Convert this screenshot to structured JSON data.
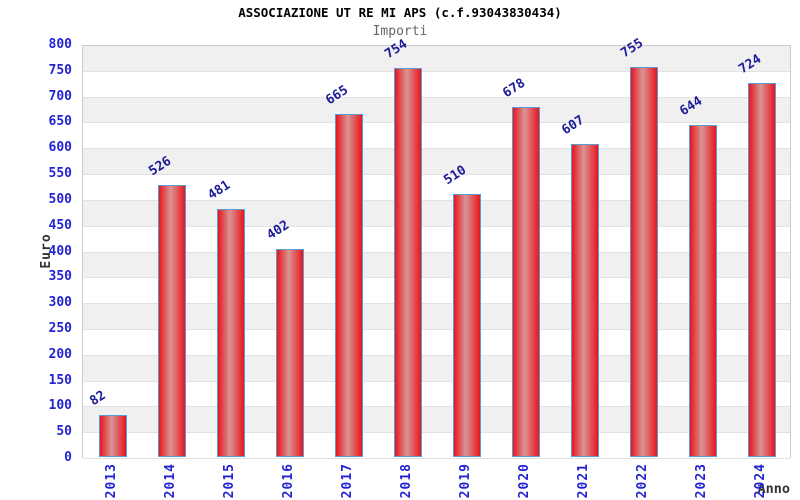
{
  "chart_data": {
    "type": "bar",
    "title": "ASSOCIAZIONE UT RE MI APS (c.f.93043830434)",
    "subtitle": "Importi",
    "xlabel": "Anno",
    "ylabel": "Euro",
    "categories": [
      "2013",
      "2014",
      "2015",
      "2016",
      "2017",
      "2018",
      "2019",
      "2020",
      "2021",
      "2022",
      "2023",
      "2024"
    ],
    "values": [
      82,
      526,
      481,
      402,
      665,
      754,
      510,
      678,
      607,
      755,
      644,
      724
    ],
    "ylim": [
      0,
      800
    ],
    "yticks": [
      0,
      50,
      100,
      150,
      200,
      250,
      300,
      350,
      400,
      450,
      500,
      550,
      600,
      650,
      700,
      750,
      800
    ],
    "legend": "none",
    "grid": "alternating-horizontal-bands",
    "colors": {
      "bar_edge": "#e8161d",
      "bar_center": "#d89494",
      "bar_border": "#5b9bd5",
      "axis_tick_label": "#2323d0",
      "value_label": "#1c1c99",
      "title": "#000000",
      "subtitle": "#666666",
      "axis_title": "#333333",
      "band_dark": "#f0f0f0",
      "band_light": "#ffffff",
      "plot_border": "#cccccc",
      "grid_line": "#e2e2e2"
    }
  }
}
